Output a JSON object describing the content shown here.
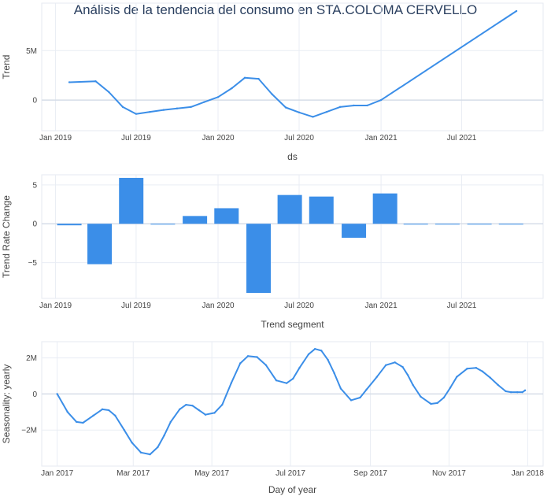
{
  "title": "Análisis de la tendencia del consumo en STA.COLOMA CERVELLO",
  "colors": {
    "line": "#3b8ee8",
    "bar": "#3b8ee8",
    "grid": "#e9edf4",
    "zero": "#d6dde8",
    "frame": "#e5e9f0"
  },
  "chart_data": [
    {
      "type": "line",
      "xlabel": "ds",
      "ylabel": "Trend",
      "yunit": "M",
      "xlim": [
        "2018-12-01",
        "2021-12-31"
      ],
      "ylim": [
        -3.1,
        9.8
      ],
      "xticks": [
        {
          "x": "2019-01-01",
          "label": "Jan 2019"
        },
        {
          "x": "2019-07-01",
          "label": "Jul 2019"
        },
        {
          "x": "2020-01-01",
          "label": "Jan 2020"
        },
        {
          "x": "2020-07-01",
          "label": "Jul 2020"
        },
        {
          "x": "2021-01-01",
          "label": "Jan 2021"
        },
        {
          "x": "2021-07-01",
          "label": "Jul 2021"
        }
      ],
      "yticks": [
        {
          "v": 0,
          "label": "0"
        },
        {
          "v": 5,
          "label": "5M"
        }
      ],
      "x": [
        "2019-02-01",
        "2019-04-01",
        "2019-05-01",
        "2019-06-01",
        "2019-07-01",
        "2019-08-01",
        "2019-09-01",
        "2019-10-01",
        "2019-11-01",
        "2019-12-01",
        "2020-01-01",
        "2020-02-01",
        "2020-03-01",
        "2020-04-01",
        "2020-05-01",
        "2020-06-01",
        "2020-07-01",
        "2020-08-01",
        "2020-09-01",
        "2020-10-01",
        "2020-11-01",
        "2020-12-01",
        "2021-01-01",
        "2021-11-01"
      ],
      "values": [
        1.8,
        1.9,
        0.8,
        -0.7,
        -1.4,
        -1.2,
        -1.0,
        -0.85,
        -0.7,
        -0.2,
        0.3,
        1.2,
        2.25,
        2.15,
        0.6,
        -0.75,
        -1.25,
        -1.7,
        -1.2,
        -0.7,
        -0.55,
        -0.55,
        0.0,
        9.0
      ]
    },
    {
      "type": "bar",
      "xlabel": "Trend segment",
      "ylabel": "Trend Rate Change",
      "xlim": [
        "2018-12-01",
        "2021-12-31"
      ],
      "ylim": [
        -9.6,
        6.3
      ],
      "xticks": [
        {
          "x": "2019-01-01",
          "label": "Jan 2019"
        },
        {
          "x": "2019-07-01",
          "label": "Jul 2019"
        },
        {
          "x": "2020-01-01",
          "label": "Jan 2020"
        },
        {
          "x": "2020-07-01",
          "label": "Jul 2020"
        },
        {
          "x": "2021-01-01",
          "label": "Jan 2021"
        },
        {
          "x": "2021-07-01",
          "label": "Jul 2021"
        }
      ],
      "yticks": [
        {
          "v": 5,
          "label": "5"
        },
        {
          "v": 0,
          "label": "0"
        },
        {
          "v": -5,
          "label": "−5"
        }
      ],
      "categories": [
        "2019-02-01",
        "2019-04-10",
        "2019-06-20",
        "2019-08-30",
        "2019-11-10",
        "2020-01-20",
        "2020-04-01",
        "2020-06-10",
        "2020-08-20",
        "2020-11-01",
        "2021-01-10",
        "2021-03-20",
        "2021-05-30",
        "2021-08-10",
        "2021-10-20"
      ],
      "values": [
        -0.2,
        -5.2,
        5.9,
        -0.1,
        1.0,
        2.0,
        -8.9,
        3.7,
        3.5,
        -1.8,
        3.9,
        0,
        0,
        0,
        0
      ]
    },
    {
      "type": "line",
      "xlabel": "Day of year",
      "ylabel": "Seasonality: yearly",
      "yunit": "M",
      "xlim": [
        -12,
        377
      ],
      "ylim": [
        -4.0,
        2.9
      ],
      "xticks": [
        {
          "x": 0,
          "label": "Jan 2017"
        },
        {
          "x": 59,
          "label": "Mar 2017"
        },
        {
          "x": 120,
          "label": "May 2017"
        },
        {
          "x": 181,
          "label": "Jul 2017"
        },
        {
          "x": 243,
          "label": "Sep 2017"
        },
        {
          "x": 304,
          "label": "Nov 2017"
        },
        {
          "x": 365,
          "label": "Jan 2018"
        }
      ],
      "yticks": [
        {
          "v": 2,
          "label": "2M"
        },
        {
          "v": 0,
          "label": "0"
        },
        {
          "v": -2,
          "label": "−2M"
        }
      ],
      "x": [
        0,
        8,
        15,
        20,
        28,
        35,
        40,
        45,
        52,
        58,
        65,
        72,
        78,
        83,
        88,
        95,
        100,
        105,
        110,
        115,
        122,
        128,
        135,
        142,
        148,
        155,
        162,
        170,
        178,
        183,
        188,
        195,
        200,
        205,
        210,
        215,
        220,
        228,
        235,
        240,
        248,
        255,
        262,
        268,
        272,
        276,
        282,
        290,
        295,
        300,
        305,
        310,
        318,
        325,
        330,
        336,
        342,
        348,
        352,
        357,
        361,
        363
      ],
      "values": [
        0,
        -1.0,
        -1.55,
        -1.6,
        -1.2,
        -0.85,
        -0.9,
        -1.2,
        -2.0,
        -2.7,
        -3.25,
        -3.35,
        -2.95,
        -2.3,
        -1.55,
        -0.85,
        -0.6,
        -0.65,
        -0.9,
        -1.15,
        -1.05,
        -0.6,
        0.6,
        1.7,
        2.1,
        2.05,
        1.6,
        0.75,
        0.6,
        0.85,
        1.45,
        2.2,
        2.5,
        2.4,
        1.9,
        1.15,
        0.3,
        -0.35,
        -0.2,
        0.25,
        0.95,
        1.6,
        1.75,
        1.5,
        1.05,
        0.5,
        -0.15,
        -0.55,
        -0.5,
        -0.2,
        0.35,
        0.95,
        1.4,
        1.45,
        1.25,
        0.9,
        0.5,
        0.15,
        0.1,
        0.1,
        0.1,
        0.2
      ]
    }
  ]
}
